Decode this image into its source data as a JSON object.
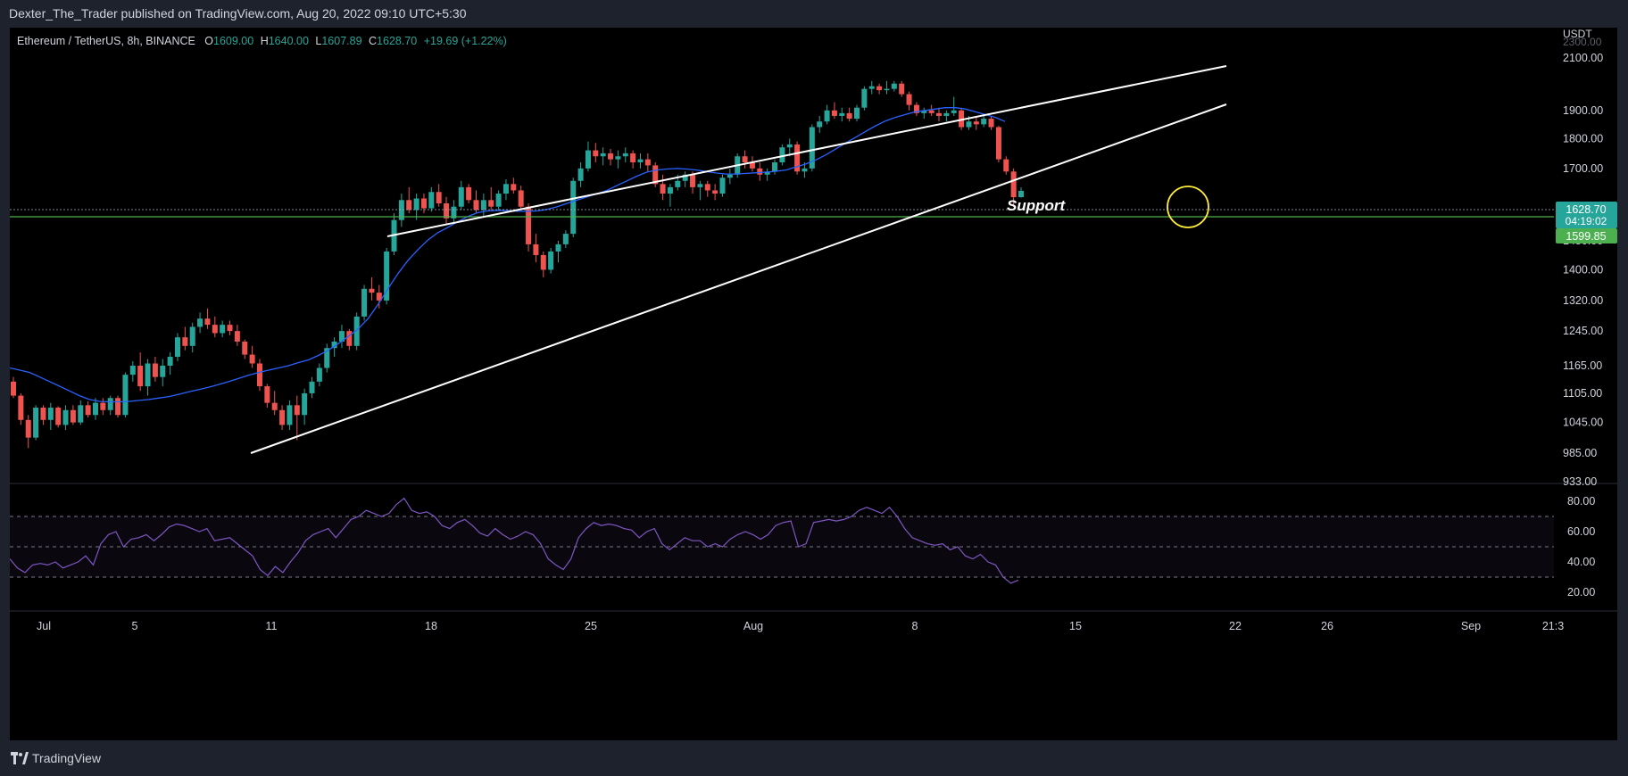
{
  "header": {
    "publisher": "Dexter_The_Trader published on TradingView.com, Aug 20, 2022 09:10 UTC+5:30"
  },
  "legend": {
    "symbol": "Ethereum / TetherUS, 8h, BINANCE",
    "open_label": "O",
    "open": "1609.00",
    "high_label": "H",
    "high": "1640.00",
    "low_label": "L",
    "low": "1607.89",
    "close_label": "C",
    "close": "1628.70",
    "change": "+19.69 (+1.22%)"
  },
  "footer": {
    "brand": "TradingView"
  },
  "colors": {
    "up": "#26a69a",
    "down": "#ef5350",
    "ma": "#2962ff",
    "rsi": "#7e57c2",
    "support_line": "#4caf50",
    "highlight": "#ffeb3b",
    "trend_lines": "#ffffff"
  },
  "icons": {
    "logo": "tradingview-logo-icon"
  },
  "chart_data": {
    "type": "candlestick",
    "symbol": "Ethereum / TetherUS",
    "interval": "8h",
    "exchange": "BINANCE",
    "price_unit": "USDT",
    "price_scale": "log",
    "price_ticks": [
      "2100.00",
      "1900.00",
      "1800.00",
      "1700.00",
      "1480.00",
      "1400.00",
      "1320.00",
      "1245.00",
      "1165.00",
      "1105.00",
      "1045.00",
      "985.00",
      "933.00"
    ],
    "price_top_partial_tick": "2300.00",
    "x_ticks": [
      "Jul",
      "5",
      "11",
      "18",
      "25",
      "Aug",
      "8",
      "15",
      "22",
      "26",
      "Sep",
      "21:3"
    ],
    "last_price": {
      "value": "1628.70",
      "countdown": "04:19:02"
    },
    "support_level": {
      "value": "1599.85",
      "label": "Support"
    },
    "candles_ohlc": [
      [
        1130,
        1140,
        1095,
        1100
      ],
      [
        1100,
        1105,
        1040,
        1050
      ],
      [
        1050,
        1060,
        995,
        1015
      ],
      [
        1015,
        1080,
        1010,
        1075
      ],
      [
        1075,
        1080,
        1040,
        1050
      ],
      [
        1050,
        1085,
        1030,
        1075
      ],
      [
        1075,
        1078,
        1035,
        1040
      ],
      [
        1040,
        1080,
        1030,
        1070
      ],
      [
        1070,
        1080,
        1040,
        1045
      ],
      [
        1045,
        1090,
        1040,
        1080
      ],
      [
        1080,
        1088,
        1055,
        1060
      ],
      [
        1060,
        1095,
        1050,
        1085
      ],
      [
        1085,
        1095,
        1060,
        1070
      ],
      [
        1070,
        1100,
        1060,
        1095
      ],
      [
        1095,
        1100,
        1055,
        1060
      ],
      [
        1060,
        1150,
        1055,
        1145
      ],
      [
        1145,
        1175,
        1130,
        1165
      ],
      [
        1165,
        1195,
        1110,
        1120
      ],
      [
        1120,
        1180,
        1100,
        1170
      ],
      [
        1170,
        1185,
        1130,
        1140
      ],
      [
        1140,
        1180,
        1120,
        1165
      ],
      [
        1165,
        1195,
        1145,
        1185
      ],
      [
        1185,
        1240,
        1175,
        1230
      ],
      [
        1230,
        1255,
        1200,
        1210
      ],
      [
        1210,
        1265,
        1195,
        1255
      ],
      [
        1255,
        1290,
        1240,
        1275
      ],
      [
        1275,
        1300,
        1250,
        1260
      ],
      [
        1260,
        1280,
        1230,
        1240
      ],
      [
        1240,
        1270,
        1230,
        1260
      ],
      [
        1260,
        1270,
        1235,
        1245
      ],
      [
        1245,
        1260,
        1210,
        1220
      ],
      [
        1220,
        1225,
        1180,
        1190
      ],
      [
        1190,
        1210,
        1160,
        1170
      ],
      [
        1170,
        1180,
        1110,
        1120
      ],
      [
        1120,
        1125,
        1075,
        1085
      ],
      [
        1085,
        1110,
        1060,
        1070
      ],
      [
        1070,
        1080,
        1030,
        1040
      ],
      [
        1040,
        1090,
        1030,
        1080
      ],
      [
        1080,
        1100,
        1010,
        1060
      ],
      [
        1060,
        1115,
        1040,
        1105
      ],
      [
        1105,
        1140,
        1095,
        1130
      ],
      [
        1130,
        1170,
        1120,
        1160
      ],
      [
        1160,
        1215,
        1150,
        1205
      ],
      [
        1205,
        1230,
        1185,
        1220
      ],
      [
        1220,
        1260,
        1205,
        1245
      ],
      [
        1245,
        1250,
        1200,
        1210
      ],
      [
        1210,
        1290,
        1200,
        1280
      ],
      [
        1280,
        1360,
        1270,
        1350
      ],
      [
        1350,
        1380,
        1320,
        1340
      ],
      [
        1340,
        1360,
        1300,
        1320
      ],
      [
        1320,
        1460,
        1310,
        1450
      ],
      [
        1450,
        1560,
        1440,
        1540
      ],
      [
        1540,
        1620,
        1520,
        1600
      ],
      [
        1600,
        1640,
        1560,
        1570
      ],
      [
        1570,
        1620,
        1540,
        1605
      ],
      [
        1605,
        1620,
        1560,
        1575
      ],
      [
        1575,
        1640,
        1565,
        1625
      ],
      [
        1625,
        1650,
        1580,
        1590
      ],
      [
        1590,
        1610,
        1530,
        1545
      ],
      [
        1545,
        1600,
        1530,
        1580
      ],
      [
        1580,
        1660,
        1570,
        1640
      ],
      [
        1640,
        1650,
        1590,
        1600
      ],
      [
        1600,
        1630,
        1560,
        1570
      ],
      [
        1570,
        1620,
        1550,
        1600
      ],
      [
        1600,
        1640,
        1570,
        1580
      ],
      [
        1580,
        1630,
        1570,
        1620
      ],
      [
        1620,
        1665,
        1600,
        1650
      ],
      [
        1650,
        1670,
        1620,
        1630
      ],
      [
        1630,
        1645,
        1570,
        1580
      ],
      [
        1580,
        1590,
        1450,
        1470
      ],
      [
        1470,
        1500,
        1420,
        1440
      ],
      [
        1440,
        1450,
        1380,
        1400
      ],
      [
        1400,
        1460,
        1390,
        1450
      ],
      [
        1450,
        1480,
        1420,
        1470
      ],
      [
        1470,
        1510,
        1460,
        1500
      ],
      [
        1500,
        1670,
        1490,
        1660
      ],
      [
        1660,
        1720,
        1640,
        1700
      ],
      [
        1700,
        1790,
        1690,
        1760
      ],
      [
        1760,
        1785,
        1720,
        1740
      ],
      [
        1740,
        1770,
        1710,
        1750
      ],
      [
        1750,
        1765,
        1710,
        1730
      ],
      [
        1730,
        1760,
        1700,
        1740
      ],
      [
        1740,
        1770,
        1720,
        1750
      ],
      [
        1750,
        1760,
        1700,
        1720
      ],
      [
        1720,
        1750,
        1700,
        1730
      ],
      [
        1730,
        1750,
        1690,
        1710
      ],
      [
        1710,
        1720,
        1640,
        1650
      ],
      [
        1650,
        1680,
        1600,
        1620
      ],
      [
        1620,
        1650,
        1580,
        1640
      ],
      [
        1640,
        1680,
        1630,
        1660
      ],
      [
        1660,
        1690,
        1640,
        1680
      ],
      [
        1680,
        1690,
        1620,
        1640
      ],
      [
        1640,
        1660,
        1600,
        1650
      ],
      [
        1650,
        1660,
        1610,
        1630
      ],
      [
        1630,
        1650,
        1600,
        1620
      ],
      [
        1620,
        1680,
        1610,
        1670
      ],
      [
        1670,
        1700,
        1650,
        1680
      ],
      [
        1680,
        1750,
        1670,
        1740
      ],
      [
        1740,
        1760,
        1700,
        1720
      ],
      [
        1720,
        1740,
        1690,
        1700
      ],
      [
        1700,
        1720,
        1660,
        1680
      ],
      [
        1680,
        1700,
        1660,
        1690
      ],
      [
        1690,
        1730,
        1680,
        1720
      ],
      [
        1720,
        1780,
        1710,
        1770
      ],
      [
        1770,
        1800,
        1740,
        1780
      ],
      [
        1780,
        1790,
        1680,
        1690
      ],
      [
        1690,
        1720,
        1670,
        1700
      ],
      [
        1700,
        1850,
        1690,
        1840
      ],
      [
        1840,
        1880,
        1820,
        1860
      ],
      [
        1860,
        1920,
        1850,
        1900
      ],
      [
        1900,
        1930,
        1870,
        1880
      ],
      [
        1880,
        1910,
        1860,
        1890
      ],
      [
        1890,
        1910,
        1860,
        1870
      ],
      [
        1870,
        1920,
        1860,
        1910
      ],
      [
        1910,
        1990,
        1900,
        1980
      ],
      [
        1980,
        2010,
        1960,
        1990
      ],
      [
        1990,
        2000,
        1960,
        1975
      ],
      [
        1975,
        2010,
        1960,
        1980
      ],
      [
        1980,
        2010,
        1970,
        2000
      ],
      [
        2000,
        2010,
        1950,
        1960
      ],
      [
        1960,
        1970,
        1900,
        1920
      ],
      [
        1920,
        1930,
        1880,
        1890
      ],
      [
        1890,
        1910,
        1870,
        1900
      ],
      [
        1900,
        1920,
        1880,
        1890
      ],
      [
        1890,
        1910,
        1860,
        1880
      ],
      [
        1880,
        1900,
        1860,
        1890
      ],
      [
        1890,
        1950,
        1880,
        1900
      ],
      [
        1900,
        1910,
        1830,
        1840
      ],
      [
        1840,
        1880,
        1830,
        1860
      ],
      [
        1860,
        1880,
        1830,
        1850
      ],
      [
        1850,
        1880,
        1840,
        1870
      ],
      [
        1870,
        1880,
        1830,
        1840
      ],
      [
        1840,
        1845,
        1720,
        1730
      ],
      [
        1730,
        1740,
        1680,
        1690
      ],
      [
        1690,
        1700,
        1580,
        1609
      ],
      [
        1609,
        1640,
        1607.89,
        1628.7
      ]
    ],
    "moving_average": [
      1160,
      1155,
      1150,
      1140,
      1130,
      1120,
      1110,
      1100,
      1092,
      1088,
      1087,
      1087,
      1088,
      1090,
      1092,
      1095,
      1098,
      1103,
      1108,
      1113,
      1118,
      1124,
      1130,
      1137,
      1144,
      1150,
      1155,
      1160,
      1165,
      1172,
      1178,
      1188,
      1200,
      1215,
      1232,
      1250,
      1275,
      1310,
      1350,
      1390,
      1425,
      1455,
      1482,
      1503,
      1518,
      1535,
      1550,
      1562,
      1567,
      1569,
      1568,
      1566,
      1566,
      1567,
      1572,
      1580,
      1590,
      1600,
      1610,
      1620,
      1630,
      1645,
      1660,
      1675,
      1688,
      1695,
      1698,
      1700,
      1698,
      1695,
      1690,
      1685,
      1682,
      1682,
      1684,
      1686,
      1688,
      1691,
      1695,
      1705,
      1715,
      1728,
      1745,
      1765,
      1785,
      1805,
      1825,
      1845,
      1862,
      1875,
      1885,
      1895,
      1900,
      1905,
      1910,
      1910,
      1905,
      1895,
      1885,
      1875,
      1860
    ],
    "rsi": {
      "ticks": [
        "80.00",
        "60.00",
        "40.00",
        "20.00"
      ],
      "upper_band": 70,
      "middle_band": 50,
      "lower_band": 30,
      "values": [
        42,
        36,
        33,
        38,
        39,
        38,
        40,
        36,
        38,
        40,
        44,
        38,
        52,
        58,
        60,
        50,
        55,
        56,
        58,
        54,
        58,
        63,
        65,
        64,
        62,
        60,
        62,
        54,
        55,
        56,
        52,
        48,
        44,
        35,
        31,
        37,
        33,
        40,
        46,
        54,
        58,
        60,
        62,
        56,
        62,
        68,
        70,
        74,
        72,
        70,
        72,
        78,
        82,
        74,
        72,
        73,
        70,
        64,
        62,
        66,
        68,
        64,
        59,
        57,
        62,
        58,
        55,
        57,
        60,
        58,
        52,
        42,
        38,
        35,
        42,
        56,
        62,
        66,
        64,
        65,
        64,
        62,
        61,
        56,
        60,
        62,
        52,
        48,
        52,
        56,
        54,
        54,
        50,
        52,
        50,
        55,
        58,
        60,
        58,
        55,
        58,
        64,
        66,
        67,
        50,
        52,
        66,
        67,
        68,
        67,
        68,
        70,
        74,
        76,
        74,
        72,
        76,
        70,
        62,
        56,
        54,
        52,
        51,
        52,
        48,
        50,
        44,
        42,
        45,
        40,
        38,
        30,
        26,
        28
      ]
    },
    "drawings": [
      "Support",
      "rising wedge upper trend line",
      "rising wedge lower trend line",
      "support horizontal line",
      "highlight circle on last candles"
    ]
  }
}
